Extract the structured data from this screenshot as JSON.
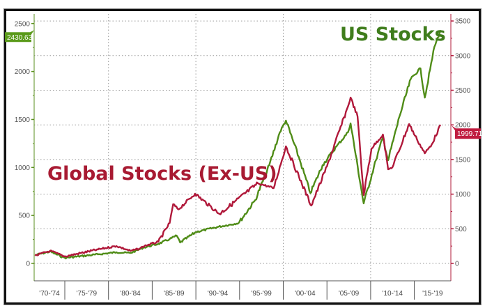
{
  "chart_data": {
    "type": "line",
    "title": "",
    "xlabel": "",
    "x_tick_labels": [
      "'70-'74",
      "'75-'79",
      "'80-'84",
      "'85-'89",
      "'90-'94",
      "'95-'99",
      "'00-'04",
      "'05-'09",
      "'10-'14",
      "'15-'19"
    ],
    "grid": true,
    "left_axis": {
      "ylim": [
        -150,
        2600
      ],
      "ticks": [
        0,
        500,
        1000,
        1500,
        2000,
        2500
      ],
      "color": "#5a8f1c"
    },
    "right_axis": {
      "ylim": [
        -250,
        3750
      ],
      "ticks": [
        0,
        500,
        1000,
        1500,
        2000,
        2500,
        3000,
        3500
      ],
      "color": "#b0183a"
    },
    "series": [
      {
        "name": "US Stocks",
        "axis": "left",
        "color": "#4f8c17",
        "last_value_label": "2430.63",
        "x": [
          1971.6,
          1973.3,
          1975.0,
          1978.8,
          1980.9,
          1982.5,
          1983.5,
          1984.1,
          1985.7,
          1987.0,
          1987.8,
          1988.2,
          1990.0,
          1992.5,
          1994.9,
          1996.8,
          1998.4,
          1999.6,
          2000.3,
          2001.9,
          2003.1,
          2004.5,
          2006.1,
          2007.4,
          2007.7,
          2009.2,
          2010.6,
          2011.4,
          2012.0,
          2013.3,
          2014.6,
          2015.7,
          2016.2,
          2016.8,
          2017.3,
          2018.0
        ],
        "values": [
          87,
          123,
          58,
          94,
          116,
          109,
          145,
          167,
          203,
          254,
          290,
          218,
          327,
          380,
          421,
          661,
          1024,
          1365,
          1489,
          1075,
          733,
          1024,
          1220,
          1365,
          1460,
          625,
          1075,
          1315,
          1075,
          1532,
          1924,
          2033,
          1728,
          2019,
          2258,
          2430.63
        ]
      },
      {
        "name": "Global Stocks (Ex-US)",
        "axis": "right",
        "color": "#b0183a",
        "last_value_label": "1999.71",
        "x": [
          1971.6,
          1973.3,
          1975.0,
          1978.8,
          1980.9,
          1982.5,
          1983.5,
          1984.1,
          1985.7,
          1987.0,
          1987.4,
          1988.0,
          1989.9,
          1992.7,
          1997.1,
          1998.9,
          2000.3,
          2001.8,
          2003.2,
          2005.0,
          2007.4,
          2007.7,
          2008.5,
          2009.2,
          2010.1,
          2011.4,
          2012.0,
          2012.5,
          2014.4,
          2015.3,
          2016.2,
          2017.0,
          2018.0
        ],
        "values": [
          111,
          181,
          100,
          201,
          251,
          181,
          211,
          251,
          312,
          583,
          855,
          780,
          1006,
          714,
          1157,
          1087,
          1690,
          1250,
          835,
          1400,
          2264,
          2394,
          2123,
          986,
          1660,
          1861,
          1358,
          1388,
          2012,
          1790,
          1590,
          1720,
          1999.71
        ]
      }
    ],
    "annotations": [
      {
        "text": "US Stocks",
        "color": "#3f7d1c"
      },
      {
        "text": "Global Stocks (Ex-US)",
        "color": "#a81a32"
      }
    ]
  }
}
